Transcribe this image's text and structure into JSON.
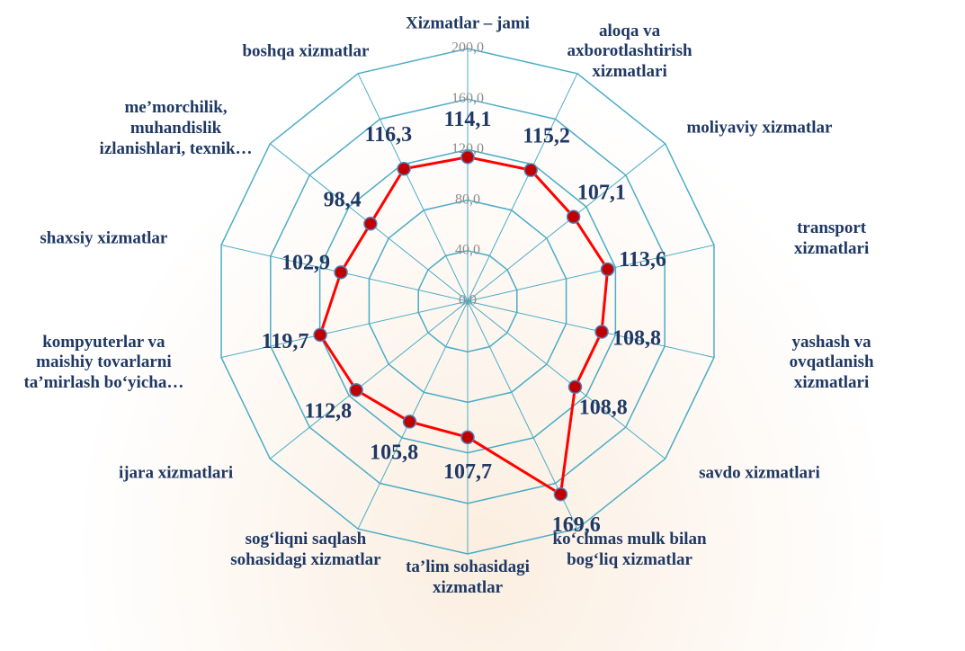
{
  "chart_data": {
    "type": "radar",
    "categories": [
      "Xizmatlar – jami",
      "aloqa va\naxborotlashtirish\nxizmatlari",
      "moliyaviy xizmatlar",
      "transport xizmatlari",
      "yashash va ovqatlanish\nxizmatlari",
      "savdo xizmatlari",
      "ko‘chmas mulk bilan\nbog‘liq xizmatlar",
      "ta’lim sohasidagi\nxizmatlar",
      "sog‘liqni saqlash\nsohasidagi xizmatlar",
      "ijara xizmatlari",
      "kompyuterlar va\nmaishiy tovarlarni\nta’mirlash bo‘yicha…",
      "shaxsiy xizmatlar",
      "me’morchilik,\nmuhandislik\nizlanishlari, texnik…",
      "boshqa xizmatlar"
    ],
    "values": [
      114.1,
      115.2,
      107.1,
      113.6,
      108.8,
      108.8,
      169.6,
      107.7,
      105.8,
      112.8,
      119.7,
      102.9,
      98.4,
      116.3
    ],
    "value_labels": [
      "114,1",
      "115,2",
      "107,1",
      "113,6",
      "108,8",
      "108,8",
      "169,6",
      "107,7",
      "105,8",
      "112,8",
      "119,7",
      "102,9",
      "98,4",
      "116,3"
    ],
    "color": "#ff0000",
    "marker_color": "#c00000",
    "grid_color": "#4bacc6",
    "ylim": [
      0,
      200
    ],
    "yticks": [
      {
        "value": 0,
        "label": "0,0"
      },
      {
        "value": 40,
        "label": "40,0"
      },
      {
        "value": 80,
        "label": "80,0"
      },
      {
        "value": 120,
        "label": "120,0"
      },
      {
        "value": 160,
        "label": "160,0"
      },
      {
        "value": 200,
        "label": "200,0"
      }
    ]
  }
}
